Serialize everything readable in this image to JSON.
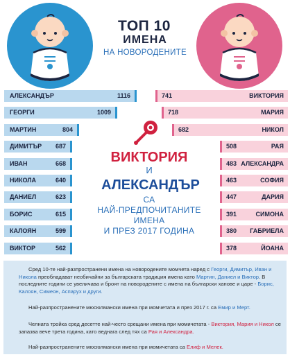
{
  "title": {
    "line1": "ТОП 10",
    "line2": "ИМЕНА",
    "line3": "НА НОВОРОДЕНИТЕ"
  },
  "colors": {
    "boys_bar": "#b9d8ee",
    "girls_bar": "#f9d2dc",
    "boys_accent": "#2a94cf",
    "girls_accent": "#e0638d",
    "dark_text": "#1c2540",
    "red_accent": "#d0213f"
  },
  "center": {
    "name1": "ВИКТОРИЯ",
    "and": "И",
    "name2": "АЛЕКСАНДЪР",
    "line_a": "СА",
    "line_b": "НАЙ-ПРЕДПОЧИТАНИТЕ",
    "line_c": "ИМЕНА",
    "line_d": "И ПРЕЗ 2017 ГОДИНА"
  },
  "chart_data": [
    {
      "type": "bar",
      "categories": [
        "АЛЕКСАНДЪР",
        "ГЕОРГИ",
        "МАРТИН",
        "ДИМИТЪР",
        "ИВАН",
        "НИКОЛА",
        "ДАНИЕЛ",
        "БОРИС",
        "КАЛОЯН",
        "ВИКТОР"
      ],
      "values": [
        1116,
        1009,
        804,
        687,
        668,
        640,
        623,
        615,
        599,
        562
      ],
      "labels": [
        "1116",
        "1009",
        "804",
        "687",
        "668",
        "640",
        "623",
        "615",
        "599",
        "562"
      ]
    },
    {
      "type": "bar",
      "categories": [
        "ВИКТОРИЯ",
        "МАРИЯ",
        "НИКОЛ",
        "РАЯ",
        "АЛЕКСАНДРА",
        "СОФИЯ",
        "ДАРИЯ",
        "СИМОНА",
        "ГАБРИЕЛА",
        "ЙОАНА"
      ],
      "values": [
        741,
        718,
        682,
        508,
        483,
        463,
        447,
        391,
        380,
        378
      ],
      "labels": [
        "741",
        "718",
        "682",
        "508",
        "483",
        "463",
        "447",
        "391",
        "380",
        "378"
      ]
    }
  ],
  "info": {
    "p1_a": "Сред 10-те най-разпространени имена на новородените момчета наред с ",
    "p1_b": "Георги, Димитър, Иван и Никола",
    "p1_c": " преобладават необичайни за българската традиция имена като ",
    "p1_d": "Мартин, Даниел и Виктор",
    "p1_e": ". В последните години се увеличава и броят на новородените с имена на български ханове и царе - ",
    "p1_f": "Борис, Калоян, Симеон, Аспарух и други.",
    "p2_a": "Най-разпространените мюсюлмански имена при момчетата и през 2017 г. са ",
    "p2_b": "Емир и Мерт.",
    "p3_a": "Челната тройка сред десетте най-често срещани имена при момичетата - ",
    "p3_b": "Виктория, Мария и Никол",
    "p3_c": " се запазва вече трета година, като веднага след тях са ",
    "p3_d": "Рая и Александра.",
    "p4_a": "Най-разпространените мюсюлмански имена при момичетата са ",
    "p4_b": "Елиф и Мелек."
  }
}
